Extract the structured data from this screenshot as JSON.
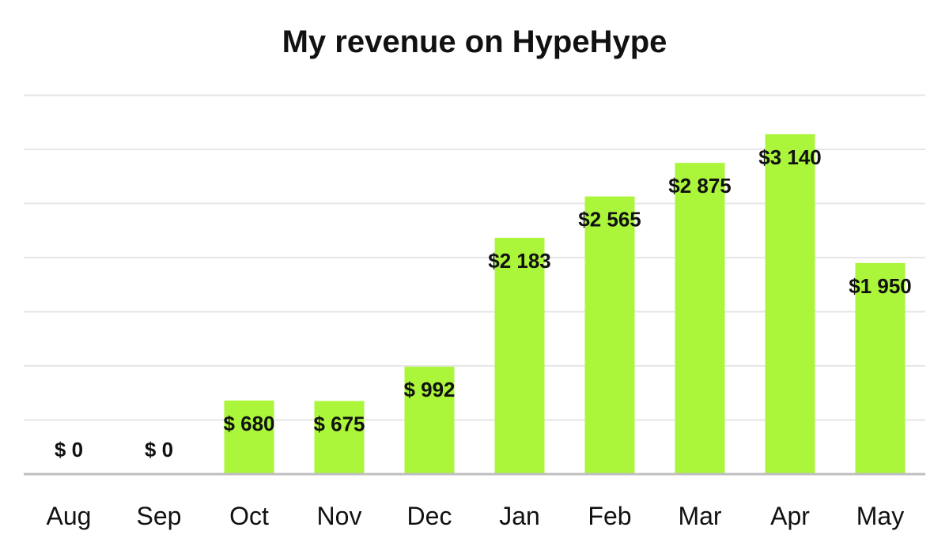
{
  "chart_data": {
    "type": "bar",
    "title": "My revenue on HypeHype",
    "xlabel": "",
    "ylabel": "",
    "categories": [
      "Aug",
      "Sep",
      "Oct",
      "Nov",
      "Dec",
      "Jan",
      "Feb",
      "Mar",
      "Apr",
      "May"
    ],
    "values": [
      0,
      0,
      680,
      675,
      992,
      2183,
      2565,
      2875,
      3140,
      1950
    ],
    "data_labels": [
      "$ 0",
      "$ 0",
      "$ 680",
      "$ 675",
      "$ 992",
      "$2 183",
      "$2 565",
      "$2 875",
      "$3 140",
      "$1 950"
    ],
    "ylim": [
      0,
      3500
    ],
    "y_tick_step": 500,
    "y_axis_labels_shown": false,
    "grid": true,
    "legend": "none",
    "bar_color": "#abf53a"
  }
}
